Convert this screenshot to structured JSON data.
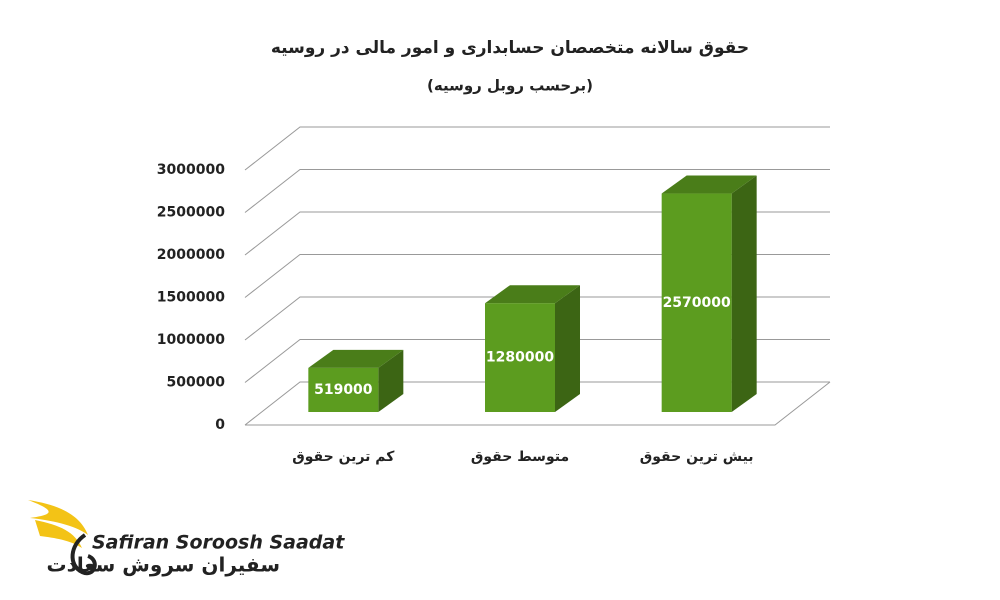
{
  "chart_data": {
    "type": "bar3d",
    "title": "حقوق سالانه متخصصان حسابداری و امور مالی در روسیه",
    "subtitle": "(برحسب روبل روسیه)",
    "categories": [
      "کم ترین حقوق",
      "متوسط حقوق",
      "بیش ترین حقوق"
    ],
    "values": [
      519000,
      1280000,
      2570000
    ],
    "color": "#5c9c1f",
    "ylim": [
      0,
      3000000
    ],
    "yticks": [
      0,
      500000,
      1000000,
      1500000,
      2000000,
      2500000,
      3000000
    ],
    "grid": true
  },
  "logo": {
    "latin": "Safiran Soroosh Saadat",
    "persian": "سفیران سروش سعادت"
  }
}
